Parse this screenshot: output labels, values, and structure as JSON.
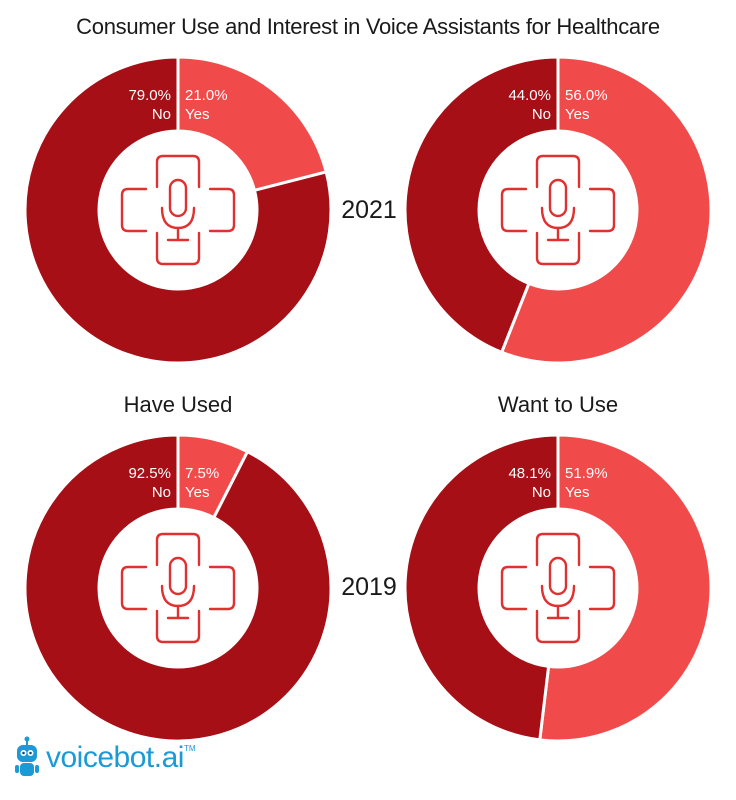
{
  "title": "Consumer Use and Interest in Voice Assistants for Healthcare",
  "colors": {
    "no": "#A50F15",
    "yes": "#F04A4A",
    "icon": "#E03131",
    "brand": "#1B9AD6"
  },
  "row_labels": {
    "2021": "2021",
    "2019": "2019"
  },
  "column_labels": {
    "have_used": "Have Used",
    "want_to_use": "Want to Use"
  },
  "brand": {
    "name": "voicebot.ai",
    "tm": "TM",
    "logo_icon": "robot-mascot-icon"
  },
  "center_icon": "medical-cross-microphone-icon",
  "chart_data": [
    {
      "type": "pie",
      "year": "2021",
      "metric": "Have Used",
      "categories": [
        "No",
        "Yes"
      ],
      "values": [
        79.0,
        21.0
      ],
      "value_labels": [
        "79.0%",
        "21.0%"
      ]
    },
    {
      "type": "pie",
      "year": "2021",
      "metric": "Want to Use",
      "categories": [
        "No",
        "Yes"
      ],
      "values": [
        44.0,
        56.0
      ],
      "value_labels": [
        "44.0%",
        "56.0%"
      ]
    },
    {
      "type": "pie",
      "year": "2019",
      "metric": "Have Used",
      "categories": [
        "No",
        "Yes"
      ],
      "values": [
        92.5,
        7.5
      ],
      "value_labels": [
        "92.5%",
        "7.5%"
      ]
    },
    {
      "type": "pie",
      "year": "2019",
      "metric": "Want to Use",
      "categories": [
        "No",
        "Yes"
      ],
      "values": [
        48.1,
        51.9
      ],
      "value_labels": [
        "48.1%",
        "51.9%"
      ]
    }
  ]
}
